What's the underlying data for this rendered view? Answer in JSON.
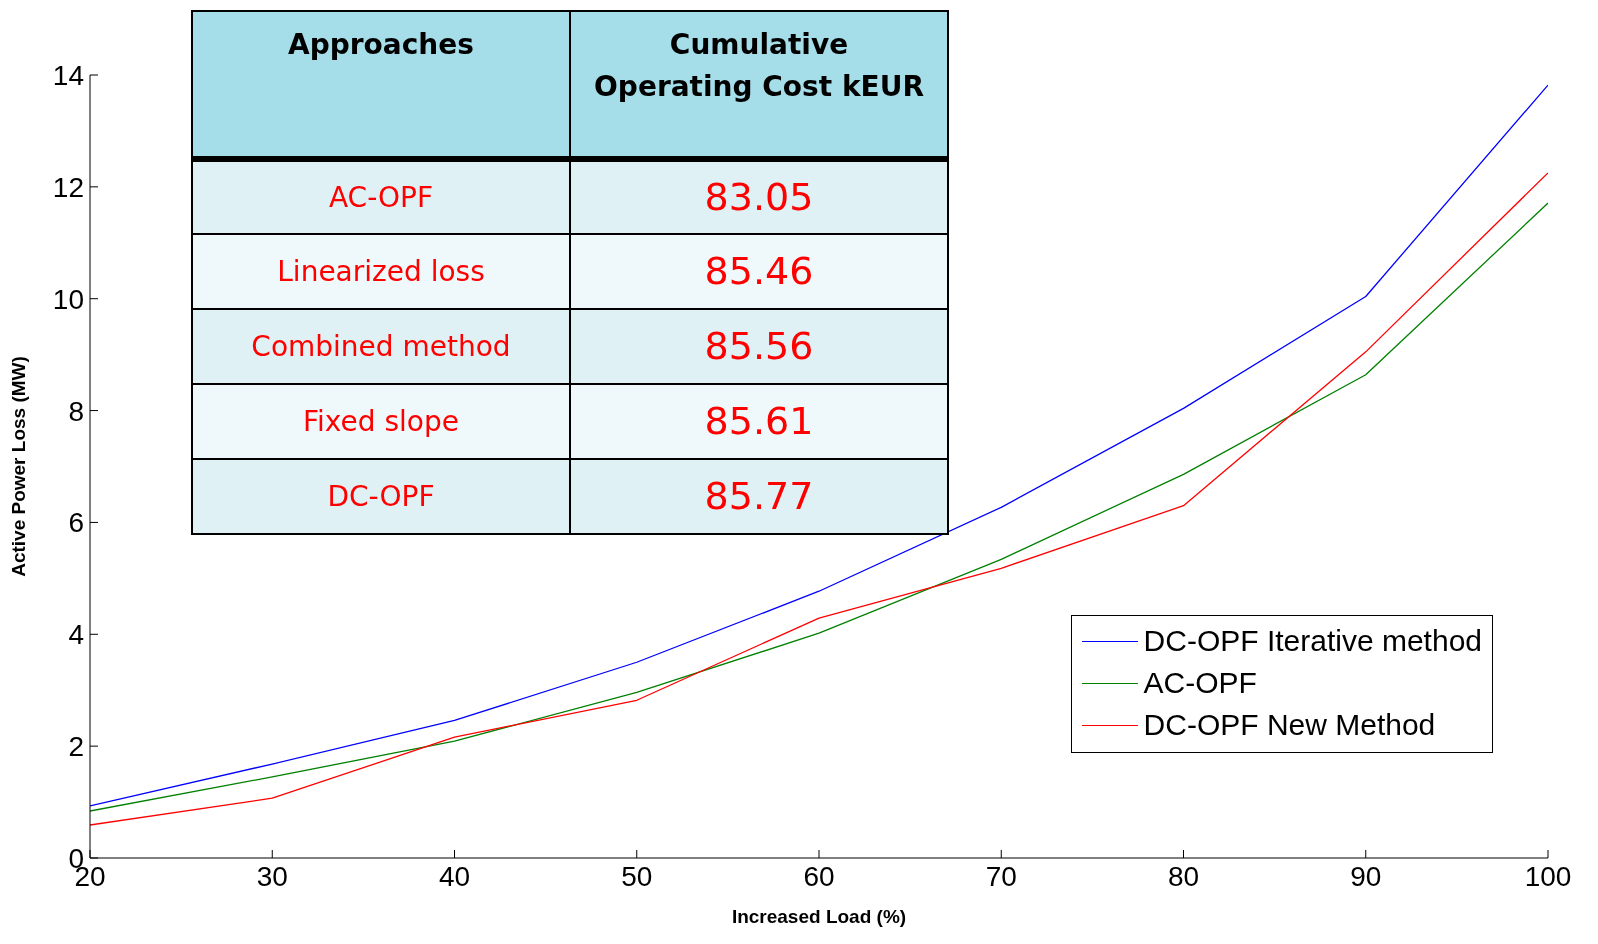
{
  "chart_data": {
    "type": "line",
    "xlabel": "Increased Load (%)",
    "ylabel": "Active Power Loss (MW)",
    "x": [
      20,
      30,
      40,
      50,
      60,
      70,
      80,
      90,
      100
    ],
    "series": [
      {
        "name": "DC-OPF Iterative method",
        "color": "#0000ff",
        "values": [
          0.93,
          1.68,
          2.46,
          3.5,
          4.77,
          6.27,
          8.04,
          10.04,
          13.82
        ]
      },
      {
        "name": "AC-OPF",
        "color": "#008000",
        "values": [
          0.84,
          1.45,
          2.09,
          2.96,
          4.02,
          5.34,
          6.86,
          8.64,
          11.71
        ]
      },
      {
        "name": "DC-OPF New Method",
        "color": "#ff0000",
        "values": [
          0.59,
          1.07,
          2.16,
          2.82,
          4.29,
          5.18,
          6.3,
          9.05,
          12.25
        ]
      }
    ],
    "xlim": [
      20,
      100
    ],
    "xticks": [
      20,
      30,
      40,
      50,
      60,
      70,
      80,
      90,
      100
    ],
    "ylim": [
      0,
      14
    ],
    "yticks": [
      0,
      2,
      4,
      6,
      8,
      10,
      12,
      14
    ],
    "grid": false,
    "legend": "bottom right",
    "marker": "none",
    "line_style": "solid",
    "annotations": [
      "Approaches",
      "Cumulative Operating Cost kEUR",
      "AC-OPF",
      "83.05",
      "Linearized loss",
      "85.46",
      "Combined method",
      "85.56",
      "Fixed slope",
      "85.61",
      "DC-OPF",
      "85.77"
    ]
  }
}
